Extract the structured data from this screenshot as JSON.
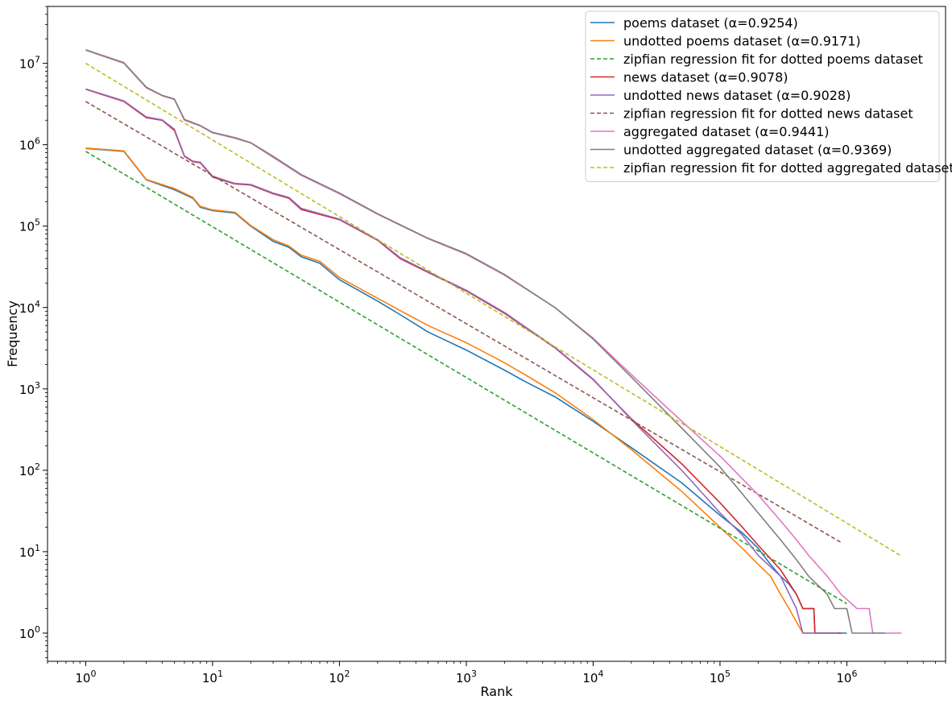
{
  "chart_data": {
    "type": "line",
    "title": "",
    "xlabel": "Rank",
    "ylabel": "Frequency",
    "xscale": "log",
    "yscale": "log",
    "xlim": [
      0.5,
      6000000
    ],
    "ylim": [
      0.45,
      50000000
    ],
    "grid": false,
    "legend_position": "top-right",
    "x_ticks": [
      {
        "value": 1,
        "base": "10",
        "exp": "0"
      },
      {
        "value": 10,
        "base": "10",
        "exp": "1"
      },
      {
        "value": 100,
        "base": "10",
        "exp": "2"
      },
      {
        "value": 1000,
        "base": "10",
        "exp": "3"
      },
      {
        "value": 10000,
        "base": "10",
        "exp": "4"
      },
      {
        "value": 100000,
        "base": "10",
        "exp": "5"
      },
      {
        "value": 1000000,
        "base": "10",
        "exp": "6"
      }
    ],
    "y_ticks": [
      {
        "value": 1,
        "base": "10",
        "exp": "0"
      },
      {
        "value": 10,
        "base": "10",
        "exp": "1"
      },
      {
        "value": 100,
        "base": "10",
        "exp": "2"
      },
      {
        "value": 1000,
        "base": "10",
        "exp": "3"
      },
      {
        "value": 10000,
        "base": "10",
        "exp": "4"
      },
      {
        "value": 100000,
        "base": "10",
        "exp": "5"
      },
      {
        "value": 1000000,
        "base": "10",
        "exp": "6"
      },
      {
        "value": 10000000,
        "base": "10",
        "exp": "7"
      }
    ],
    "series": [
      {
        "name": "poems dataset (α=0.9254)",
        "color": "#1f77b4",
        "style": "solid",
        "points": [
          [
            1,
            900000
          ],
          [
            2,
            830000
          ],
          [
            3,
            370000
          ],
          [
            5,
            280000
          ],
          [
            7,
            220000
          ],
          [
            8,
            170000
          ],
          [
            10,
            155000
          ],
          [
            15,
            145000
          ],
          [
            20,
            100000
          ],
          [
            30,
            65000
          ],
          [
            40,
            55000
          ],
          [
            50,
            42000
          ],
          [
            70,
            35000
          ],
          [
            100,
            22000
          ],
          [
            200,
            12000
          ],
          [
            300,
            8200
          ],
          [
            500,
            5000
          ],
          [
            1000,
            3000
          ],
          [
            2000,
            1700
          ],
          [
            3000,
            1200
          ],
          [
            5000,
            800
          ],
          [
            10000,
            400
          ],
          [
            20000,
            190
          ],
          [
            50000,
            70
          ],
          [
            100000,
            28
          ],
          [
            150000,
            17
          ],
          [
            200000,
            11
          ],
          [
            250000,
            7
          ],
          [
            300000,
            5
          ],
          [
            350000,
            4
          ],
          [
            400000,
            3
          ],
          [
            450000,
            2
          ],
          [
            550000,
            2
          ],
          [
            560000,
            1
          ],
          [
            1000000,
            1
          ]
        ]
      },
      {
        "name": "undotted poems dataset (α=0.9171)",
        "color": "#ff7f0e",
        "style": "solid",
        "points": [
          [
            1,
            910000
          ],
          [
            2,
            840000
          ],
          [
            3,
            375000
          ],
          [
            5,
            290000
          ],
          [
            7,
            225000
          ],
          [
            8,
            175000
          ],
          [
            10,
            158000
          ],
          [
            15,
            148000
          ],
          [
            20,
            102000
          ],
          [
            30,
            68000
          ],
          [
            40,
            57000
          ],
          [
            50,
            44000
          ],
          [
            70,
            37000
          ],
          [
            100,
            23500
          ],
          [
            200,
            13000
          ],
          [
            300,
            9200
          ],
          [
            500,
            6000
          ],
          [
            1000,
            3700
          ],
          [
            2000,
            2100
          ],
          [
            3000,
            1450
          ],
          [
            5000,
            900
          ],
          [
            10000,
            420
          ],
          [
            20000,
            180
          ],
          [
            50000,
            55
          ],
          [
            100000,
            20
          ],
          [
            150000,
            11
          ],
          [
            200000,
            7
          ],
          [
            250000,
            5
          ],
          [
            300000,
            3
          ],
          [
            350000,
            2
          ],
          [
            450000,
            1
          ],
          [
            550000,
            1
          ]
        ]
      },
      {
        "name": "zipfian regression fit for dotted poems dataset",
        "color": "#2ca02c",
        "style": "dashed",
        "points": [
          [
            1,
            830000
          ],
          [
            1000000,
            2.3
          ]
        ]
      },
      {
        "name": "news dataset (α=0.9078)",
        "color": "#d62728",
        "style": "solid",
        "points": [
          [
            1,
            4800000
          ],
          [
            2,
            3400000
          ],
          [
            3,
            2150000
          ],
          [
            4,
            2000000
          ],
          [
            5,
            1500000
          ],
          [
            6,
            720000
          ],
          [
            7,
            620000
          ],
          [
            8,
            600000
          ],
          [
            10,
            400000
          ],
          [
            15,
            330000
          ],
          [
            20,
            320000
          ],
          [
            30,
            250000
          ],
          [
            40,
            220000
          ],
          [
            50,
            160000
          ],
          [
            100,
            120000
          ],
          [
            200,
            67000
          ],
          [
            300,
            40000
          ],
          [
            500,
            27000
          ],
          [
            1000,
            16000
          ],
          [
            2000,
            8500
          ],
          [
            3000,
            5500
          ],
          [
            5000,
            3200
          ],
          [
            10000,
            1300
          ],
          [
            20000,
            430
          ],
          [
            50000,
            120
          ],
          [
            100000,
            40
          ],
          [
            150000,
            20
          ],
          [
            200000,
            12
          ],
          [
            300000,
            6
          ],
          [
            400000,
            3
          ],
          [
            450000,
            2
          ],
          [
            550000,
            2
          ],
          [
            560000,
            1
          ],
          [
            900000,
            1
          ]
        ]
      },
      {
        "name": "undotted news dataset (α=0.9028)",
        "color": "#9467bd",
        "style": "solid",
        "points": [
          [
            1,
            4850000
          ],
          [
            2,
            3450000
          ],
          [
            3,
            2200000
          ],
          [
            4,
            2020000
          ],
          [
            5,
            1550000
          ],
          [
            6,
            730000
          ],
          [
            7,
            630000
          ],
          [
            8,
            610000
          ],
          [
            10,
            410000
          ],
          [
            15,
            335000
          ],
          [
            20,
            325000
          ],
          [
            30,
            255000
          ],
          [
            40,
            225000
          ],
          [
            50,
            165000
          ],
          [
            100,
            122000
          ],
          [
            200,
            68000
          ],
          [
            300,
            41000
          ],
          [
            500,
            27500
          ],
          [
            1000,
            16300
          ],
          [
            2000,
            8700
          ],
          [
            3000,
            5600
          ],
          [
            5000,
            3250
          ],
          [
            10000,
            1320
          ],
          [
            20000,
            420
          ],
          [
            50000,
            100
          ],
          [
            100000,
            30
          ],
          [
            150000,
            16
          ],
          [
            200000,
            9
          ],
          [
            300000,
            5
          ],
          [
            400000,
            2
          ],
          [
            450000,
            1
          ],
          [
            850000,
            1
          ]
        ]
      },
      {
        "name": "zipfian regression fit for dotted news dataset",
        "color": "#8c564b",
        "style": "dashed",
        "points": [
          [
            1,
            3400000
          ],
          [
            900000,
            13
          ]
        ]
      },
      {
        "name": "aggregated dataset (α=0.9441)",
        "color": "#e377c2",
        "style": "solid",
        "points": [
          [
            1,
            14500000
          ],
          [
            2,
            10000000
          ],
          [
            3,
            5000000
          ],
          [
            4,
            4000000
          ],
          [
            5,
            3600000
          ],
          [
            6,
            2000000
          ],
          [
            8,
            1700000
          ],
          [
            10,
            1400000
          ],
          [
            15,
            1200000
          ],
          [
            20,
            1050000
          ],
          [
            30,
            700000
          ],
          [
            50,
            420000
          ],
          [
            100,
            250000
          ],
          [
            200,
            140000
          ],
          [
            500,
            70000
          ],
          [
            1000,
            45000
          ],
          [
            2000,
            25000
          ],
          [
            5000,
            10000
          ],
          [
            10000,
            4200
          ],
          [
            20000,
            1500
          ],
          [
            50000,
            400
          ],
          [
            100000,
            150
          ],
          [
            200000,
            50
          ],
          [
            300000,
            24
          ],
          [
            400000,
            14
          ],
          [
            500000,
            9
          ],
          [
            700000,
            5
          ],
          [
            900000,
            3
          ],
          [
            1200000,
            2
          ],
          [
            1500000,
            2
          ],
          [
            1600000,
            1
          ],
          [
            2700000,
            1
          ]
        ]
      },
      {
        "name": "undotted aggregated dataset (α=0.9369)",
        "color": "#7f7f7f",
        "style": "solid",
        "points": [
          [
            1,
            14700000
          ],
          [
            2,
            10200000
          ],
          [
            3,
            5100000
          ],
          [
            4,
            4050000
          ],
          [
            5,
            3650000
          ],
          [
            6,
            2050000
          ],
          [
            8,
            1720000
          ],
          [
            10,
            1420000
          ],
          [
            15,
            1220000
          ],
          [
            20,
            1060000
          ],
          [
            30,
            720000
          ],
          [
            50,
            430000
          ],
          [
            100,
            255000
          ],
          [
            200,
            142000
          ],
          [
            500,
            71000
          ],
          [
            1000,
            46000
          ],
          [
            2000,
            25500
          ],
          [
            5000,
            10000
          ],
          [
            10000,
            4100
          ],
          [
            20000,
            1400
          ],
          [
            50000,
            330
          ],
          [
            100000,
            110
          ],
          [
            200000,
            30
          ],
          [
            300000,
            14
          ],
          [
            400000,
            8
          ],
          [
            500000,
            5
          ],
          [
            700000,
            3
          ],
          [
            800000,
            2
          ],
          [
            1000000,
            2
          ],
          [
            1100000,
            1
          ],
          [
            2000000,
            1
          ]
        ]
      },
      {
        "name": "zipfian regression fit for dotted aggregated dataset",
        "color": "#bcbd22",
        "style": "dashed",
        "points": [
          [
            1,
            10000000
          ],
          [
            2700000,
            8.8
          ]
        ]
      }
    ]
  }
}
